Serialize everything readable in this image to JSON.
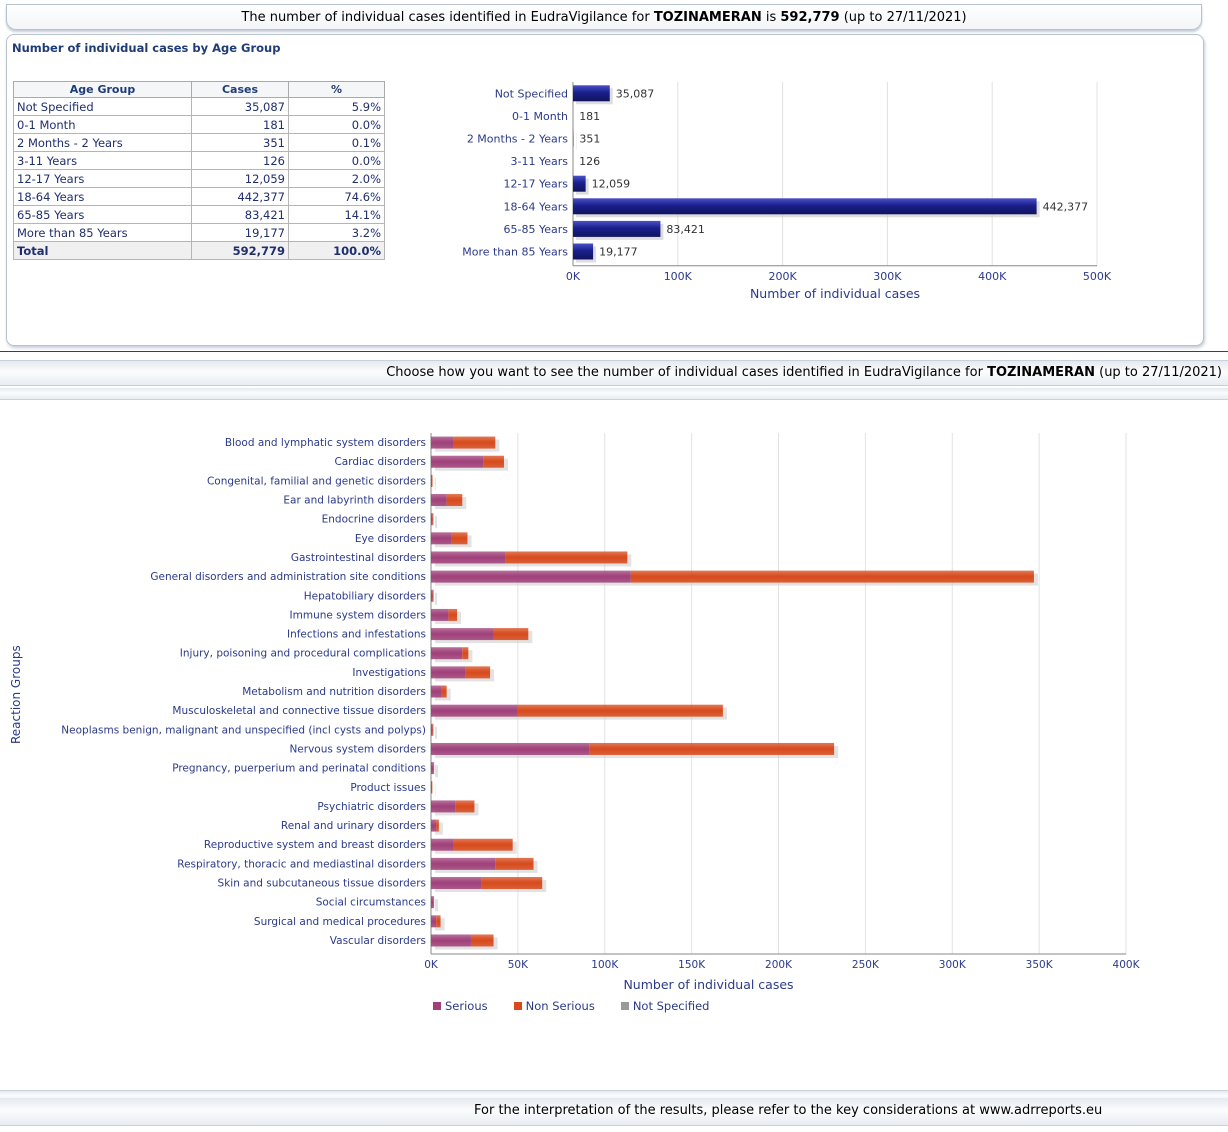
{
  "header": {
    "prefix": "The number of individual cases identified in EudraVigilance for ",
    "drug": "TOZINAMERAN",
    "middle": " is ",
    "total": "592,779",
    "suffix": " (up to 27/11/2021)"
  },
  "age_panel": {
    "title": "Number of individual cases by Age Group",
    "columns": [
      "Age Group",
      "Cases",
      "%"
    ],
    "rows": [
      [
        "Not Specified",
        "35,087",
        "5.9%"
      ],
      [
        "0-1 Month",
        "181",
        "0.0%"
      ],
      [
        "2 Months - 2 Years",
        "351",
        "0.1%"
      ],
      [
        "3-11 Years",
        "126",
        "0.0%"
      ],
      [
        "12-17 Years",
        "12,059",
        "2.0%"
      ],
      [
        "18-64 Years",
        "442,377",
        "74.6%"
      ],
      [
        "65-85 Years",
        "83,421",
        "14.1%"
      ],
      [
        "More than 85 Years",
        "19,177",
        "3.2%"
      ]
    ],
    "total_row": [
      "Total",
      "592,779",
      "100.0%"
    ]
  },
  "choose_band": {
    "prefix": "Choose how you want to see the number of individual cases identified in EudraVigilance for ",
    "drug": "TOZINAMERAN",
    "suffix": " (up to 27/11/2021)"
  },
  "footer": {
    "text": "For the interpretation of the results, please refer to the key considerations at www.adrreports.eu"
  },
  "chart_data": [
    {
      "type": "bar",
      "orientation": "horizontal",
      "categories": [
        "Not Specified",
        "0-1 Month",
        "2 Months - 2 Years",
        "3-11 Years",
        "12-17 Years",
        "18-64 Years",
        "65-85 Years",
        "More than 85 Years"
      ],
      "values": [
        35087,
        181,
        351,
        126,
        12059,
        442377,
        83421,
        19177
      ],
      "value_labels": [
        "35,087",
        "181",
        "351",
        "126",
        "12,059",
        "442,377",
        "83,421",
        "19,177"
      ],
      "xlabel": "Number of individual cases",
      "xlim": [
        0,
        500000
      ],
      "xticks": [
        "0K",
        "100K",
        "200K",
        "300K",
        "400K",
        "500K"
      ],
      "grid": true,
      "color": "#1a1f8c"
    },
    {
      "type": "bar",
      "orientation": "horizontal",
      "stacked": true,
      "categories": [
        "Blood and lymphatic system disorders",
        "Cardiac disorders",
        "Congenital, familial and genetic disorders",
        "Ear and labyrinth disorders",
        "Endocrine disorders",
        "Eye disorders",
        "Gastrointestinal disorders",
        "General disorders and administration site conditions",
        "Hepatobiliary disorders",
        "Immune system disorders",
        "Infections and infestations",
        "Injury, poisoning and procedural complications",
        "Investigations",
        "Metabolism and nutrition disorders",
        "Musculoskeletal and connective tissue disorders",
        "Neoplasms benign, malignant and unspecified (incl cysts and polyps)",
        "Nervous system disorders",
        "Pregnancy, puerperium and perinatal conditions",
        "Product issues",
        "Psychiatric disorders",
        "Renal and urinary disorders",
        "Reproductive system and breast disorders",
        "Respiratory, thoracic and mediastinal disorders",
        "Skin and subcutaneous tissue disorders",
        "Social circumstances",
        "Surgical and medical procedures",
        "Vascular disorders"
      ],
      "series": [
        {
          "name": "Serious",
          "color": "#a0407a",
          "values": [
            13000,
            30000,
            300,
            9000,
            800,
            12000,
            43000,
            115000,
            900,
            10000,
            36000,
            18000,
            20000,
            6000,
            50000,
            800,
            91000,
            1200,
            200,
            14000,
            3000,
            13000,
            37000,
            29000,
            1200,
            3000,
            23000
          ]
        },
        {
          "name": "Non Serious",
          "color": "#d84a1c",
          "values": [
            24000,
            12000,
            200,
            9000,
            400,
            9000,
            70000,
            232000,
            300,
            5000,
            20000,
            3500,
            14000,
            3000,
            118000,
            300,
            141000,
            600,
            100,
            11000,
            1500,
            34000,
            22000,
            35000,
            500,
            2500,
            13000
          ]
        },
        {
          "name": "Not Specified",
          "color": "#9a9a9a",
          "values": [
            0,
            0,
            0,
            0,
            0,
            0,
            0,
            0,
            0,
            0,
            0,
            0,
            0,
            0,
            0,
            0,
            0,
            0,
            0,
            0,
            0,
            0,
            0,
            0,
            0,
            0,
            0
          ]
        }
      ],
      "xlabel": "Number of individual cases",
      "ylabel": "Reaction Groups",
      "xlim": [
        0,
        400000
      ],
      "xticks": [
        "0K",
        "50K",
        "100K",
        "150K",
        "200K",
        "250K",
        "300K",
        "350K",
        "400K"
      ],
      "grid": true,
      "legend": "bottom-left"
    }
  ]
}
